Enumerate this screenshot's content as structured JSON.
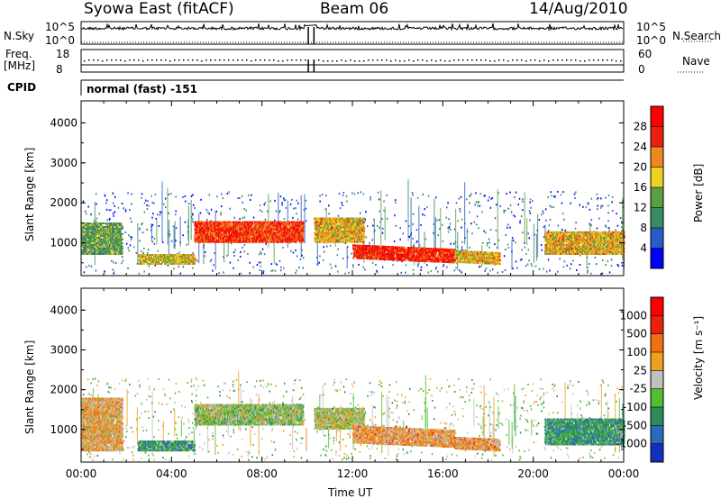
{
  "header": {
    "station": "Syowa East (fitACF)",
    "beam": "Beam 06",
    "date": "14/Aug/2010"
  },
  "top_panels": {
    "nsky_label": "N.Sky",
    "nsearch_label": "N.Search",
    "n_ticks": [
      "10^5",
      "10^0"
    ],
    "freq_label": "Freq.",
    "freq_unit": "[MHz]",
    "freq_ticks": [
      "18",
      "8"
    ],
    "nave_label": "Nave",
    "nave_ticks": [
      "60",
      "0"
    ],
    "cpid_label": "CPID",
    "cpid_value": "normal (fast) -151"
  },
  "chart_data": [
    {
      "type": "heatmap",
      "name": "power",
      "ylabel": "Slant Range [km]",
      "xlabel": "",
      "x_ticks": [
        "00:00",
        "04:00",
        "08:00",
        "12:00",
        "16:00",
        "20:00",
        "00:00"
      ],
      "y_ticks": [
        1000,
        2000,
        3000,
        4000
      ],
      "xlim_hours": [
        0,
        24
      ],
      "ylim_km": [
        180,
        4550
      ],
      "colorbar": {
        "label": "Power [dB]",
        "tick_labels": [
          "4",
          "8",
          "12",
          "16",
          "20",
          "24",
          "28"
        ],
        "range": [
          0,
          30
        ],
        "colors": [
          "#0000ff",
          "#2a5cc8",
          "#3a8c64",
          "#5aa040",
          "#f0d020",
          "#f08820",
          "#e82010",
          "#ff0000"
        ]
      },
      "bands": [
        {
          "t": [
            0.0,
            1.8
          ],
          "range": [
            700,
            1500
          ],
          "level": 0.4
        },
        {
          "t": [
            2.5,
            5.0
          ],
          "range": [
            450,
            700
          ],
          "level": 0.55
        },
        {
          "t": [
            5.0,
            9.8
          ],
          "range": [
            1000,
            1500
          ],
          "level": 0.8
        },
        {
          "t": [
            10.3,
            12.5
          ],
          "range": [
            1000,
            1600
          ],
          "level": 0.6
        },
        {
          "t": [
            12.0,
            16.5
          ],
          "range": [
            600,
            950
          ],
          "level": 0.85
        },
        {
          "t": [
            16.5,
            18.5
          ],
          "range": [
            500,
            800
          ],
          "level": 0.6
        },
        {
          "t": [
            20.5,
            24.0
          ],
          "range": [
            700,
            1250
          ],
          "level": 0.6
        }
      ]
    },
    {
      "type": "heatmap",
      "name": "velocity",
      "ylabel": "Slant Range [km]",
      "xlabel": "Time UT",
      "x_ticks": [
        "00:00",
        "04:00",
        "08:00",
        "12:00",
        "16:00",
        "20:00",
        "00:00"
      ],
      "y_ticks": [
        1000,
        2000,
        3000,
        4000
      ],
      "xlim_hours": [
        0,
        24
      ],
      "ylim_km": [
        180,
        4550
      ],
      "colorbar": {
        "label": "Velocity [m s⁻¹]",
        "tick_labels": [
          "1000",
          "500",
          "100",
          "25",
          "-25",
          "-100",
          "-500",
          "-1000"
        ],
        "colors": [
          "#1030c0",
          "#2a6abc",
          "#2a8c5c",
          "#50c030",
          "#c0c0c0",
          "#f0a020",
          "#f07010",
          "#e82010",
          "#ff0000"
        ]
      },
      "bands": [
        {
          "t": [
            0.0,
            1.8
          ],
          "range": [
            450,
            1800
          ],
          "level": 0.6
        },
        {
          "t": [
            2.5,
            5.0
          ],
          "range": [
            450,
            700
          ],
          "level": 0.3
        },
        {
          "t": [
            5.0,
            9.8
          ],
          "range": [
            1100,
            1600
          ],
          "level": 0.45
        },
        {
          "t": [
            10.3,
            12.5
          ],
          "range": [
            1000,
            1500
          ],
          "level": 0.5
        },
        {
          "t": [
            12.0,
            16.5
          ],
          "range": [
            650,
            1100
          ],
          "level": 0.62
        },
        {
          "t": [
            16.5,
            18.5
          ],
          "range": [
            500,
            800
          ],
          "level": 0.62
        },
        {
          "t": [
            20.5,
            24.0
          ],
          "range": [
            600,
            1250
          ],
          "level": 0.3
        }
      ]
    }
  ]
}
